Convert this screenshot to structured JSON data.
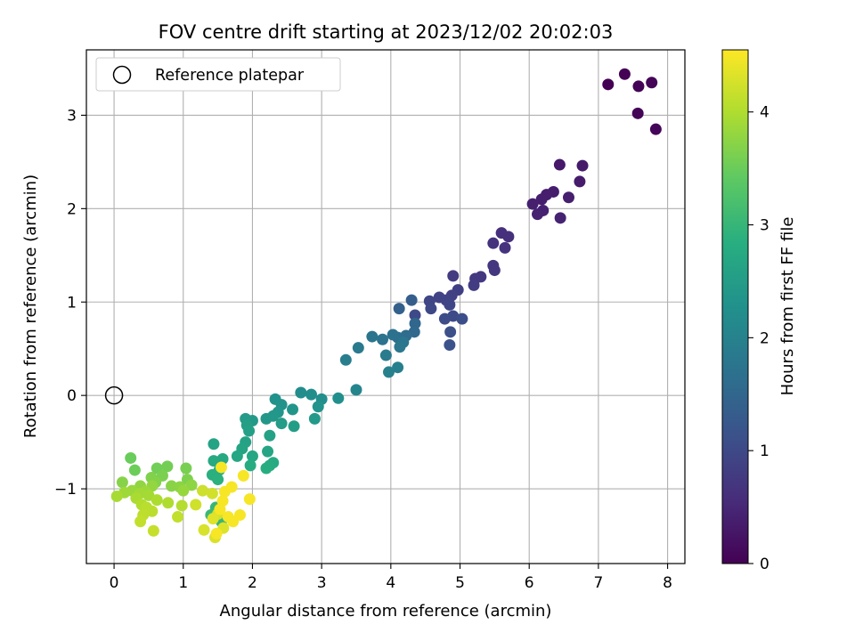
{
  "chart_data": {
    "type": "scatter",
    "title": "FOV centre drift starting at 2023/12/02 20:02:03",
    "xlabel": "Angular distance from reference (arcmin)",
    "ylabel": "Rotation from reference (arcmin)",
    "xlim": [
      -0.4,
      8.25
    ],
    "ylim": [
      -1.8,
      3.7
    ],
    "xticks": [
      0,
      1,
      2,
      3,
      4,
      5,
      6,
      7,
      8
    ],
    "yticks": [
      -1,
      0,
      1,
      2,
      3
    ],
    "grid": true,
    "legend": {
      "location": "upper left",
      "entries": [
        "Reference platepar"
      ]
    },
    "reference_point": {
      "x": 0,
      "y": 0,
      "marker": "open-circle",
      "label": "Reference platepar"
    },
    "colorbar": {
      "label": "Hours from first FF file",
      "range": [
        0,
        4.55
      ],
      "ticks": [
        0,
        1,
        2,
        3,
        4
      ],
      "colormap": "viridis"
    },
    "points": [
      {
        "x": 7.14,
        "y": 3.33,
        "t": 0.0
      },
      {
        "x": 7.38,
        "y": 3.44,
        "t": 0.02
      },
      {
        "x": 7.58,
        "y": 3.31,
        "t": 0.03
      },
      {
        "x": 7.77,
        "y": 3.35,
        "t": 0.04
      },
      {
        "x": 7.57,
        "y": 3.02,
        "t": 0.05
      },
      {
        "x": 7.83,
        "y": 2.85,
        "t": 0.06
      },
      {
        "x": 6.44,
        "y": 2.47,
        "t": 0.3
      },
      {
        "x": 6.77,
        "y": 2.46,
        "t": 0.32
      },
      {
        "x": 6.73,
        "y": 2.29,
        "t": 0.33
      },
      {
        "x": 6.35,
        "y": 2.18,
        "t": 0.35
      },
      {
        "x": 6.25,
        "y": 2.15,
        "t": 0.37
      },
      {
        "x": 6.18,
        "y": 2.1,
        "t": 0.38
      },
      {
        "x": 6.57,
        "y": 2.12,
        "t": 0.39
      },
      {
        "x": 6.05,
        "y": 2.05,
        "t": 0.4
      },
      {
        "x": 6.2,
        "y": 1.98,
        "t": 0.42
      },
      {
        "x": 6.12,
        "y": 1.94,
        "t": 0.43
      },
      {
        "x": 6.45,
        "y": 1.9,
        "t": 0.44
      },
      {
        "x": 5.6,
        "y": 1.74,
        "t": 0.6
      },
      {
        "x": 5.7,
        "y": 1.7,
        "t": 0.62
      },
      {
        "x": 5.48,
        "y": 1.63,
        "t": 0.64
      },
      {
        "x": 5.65,
        "y": 1.58,
        "t": 0.66
      },
      {
        "x": 5.48,
        "y": 1.39,
        "t": 0.7
      },
      {
        "x": 5.5,
        "y": 1.34,
        "t": 0.72
      },
      {
        "x": 5.3,
        "y": 1.27,
        "t": 0.74
      },
      {
        "x": 5.22,
        "y": 1.25,
        "t": 0.76
      },
      {
        "x": 4.9,
        "y": 1.28,
        "t": 0.78
      },
      {
        "x": 5.2,
        "y": 1.18,
        "t": 0.8
      },
      {
        "x": 4.97,
        "y": 1.13,
        "t": 0.84
      },
      {
        "x": 4.88,
        "y": 1.07,
        "t": 0.87
      },
      {
        "x": 4.7,
        "y": 1.05,
        "t": 0.9
      },
      {
        "x": 4.8,
        "y": 1.02,
        "t": 0.92
      },
      {
        "x": 4.56,
        "y": 1.01,
        "t": 0.94
      },
      {
        "x": 4.85,
        "y": 0.97,
        "t": 0.96
      },
      {
        "x": 4.58,
        "y": 0.93,
        "t": 0.98
      },
      {
        "x": 4.35,
        "y": 0.86,
        "t": 1.0
      },
      {
        "x": 4.9,
        "y": 0.85,
        "t": 1.02
      },
      {
        "x": 4.78,
        "y": 0.82,
        "t": 1.05
      },
      {
        "x": 5.03,
        "y": 0.82,
        "t": 1.07
      },
      {
        "x": 4.86,
        "y": 0.68,
        "t": 1.1
      },
      {
        "x": 4.85,
        "y": 0.54,
        "t": 1.13
      },
      {
        "x": 4.3,
        "y": 1.02,
        "t": 1.35
      },
      {
        "x": 4.12,
        "y": 0.93,
        "t": 1.4
      },
      {
        "x": 4.35,
        "y": 0.77,
        "t": 1.5
      },
      {
        "x": 4.34,
        "y": 0.68,
        "t": 1.55
      },
      {
        "x": 4.22,
        "y": 0.64,
        "t": 1.6
      },
      {
        "x": 4.1,
        "y": 0.62,
        "t": 1.65
      },
      {
        "x": 4.03,
        "y": 0.65,
        "t": 1.7
      },
      {
        "x": 3.88,
        "y": 0.6,
        "t": 1.72
      },
      {
        "x": 3.73,
        "y": 0.63,
        "t": 1.75
      },
      {
        "x": 4.18,
        "y": 0.57,
        "t": 1.78
      },
      {
        "x": 4.13,
        "y": 0.52,
        "t": 1.8
      },
      {
        "x": 3.53,
        "y": 0.51,
        "t": 1.85
      },
      {
        "x": 3.93,
        "y": 0.43,
        "t": 1.88
      },
      {
        "x": 3.35,
        "y": 0.38,
        "t": 1.92
      },
      {
        "x": 4.1,
        "y": 0.3,
        "t": 1.95
      },
      {
        "x": 3.97,
        "y": 0.25,
        "t": 1.98
      },
      {
        "x": 3.5,
        "y": 0.06,
        "t": 2.05
      },
      {
        "x": 2.7,
        "y": 0.03,
        "t": 2.2
      },
      {
        "x": 2.85,
        "y": 0.01,
        "t": 2.22
      },
      {
        "x": 3.0,
        "y": -0.04,
        "t": 2.24
      },
      {
        "x": 3.24,
        "y": -0.03,
        "t": 2.26
      },
      {
        "x": 2.33,
        "y": -0.04,
        "t": 2.3
      },
      {
        "x": 2.42,
        "y": -0.1,
        "t": 2.32
      },
      {
        "x": 2.95,
        "y": -0.12,
        "t": 2.34
      },
      {
        "x": 2.58,
        "y": -0.15,
        "t": 2.36
      },
      {
        "x": 2.37,
        "y": -0.18,
        "t": 2.38
      },
      {
        "x": 2.3,
        "y": -0.22,
        "t": 2.4
      },
      {
        "x": 2.2,
        "y": -0.25,
        "t": 2.42
      },
      {
        "x": 2.9,
        "y": -0.25,
        "t": 2.44
      },
      {
        "x": 2.0,
        "y": -0.27,
        "t": 2.46
      },
      {
        "x": 1.9,
        "y": -0.25,
        "t": 2.48
      },
      {
        "x": 2.42,
        "y": -0.3,
        "t": 2.5
      },
      {
        "x": 2.6,
        "y": -0.33,
        "t": 2.52
      },
      {
        "x": 1.92,
        "y": -0.32,
        "t": 2.54
      },
      {
        "x": 1.95,
        "y": -0.38,
        "t": 2.56
      },
      {
        "x": 2.25,
        "y": -0.43,
        "t": 2.58
      },
      {
        "x": 1.9,
        "y": -0.5,
        "t": 2.6
      },
      {
        "x": 1.44,
        "y": -0.52,
        "t": 2.62
      },
      {
        "x": 1.85,
        "y": -0.57,
        "t": 2.64
      },
      {
        "x": 2.22,
        "y": -0.6,
        "t": 2.66
      },
      {
        "x": 1.78,
        "y": -0.65,
        "t": 2.68
      },
      {
        "x": 2.0,
        "y": -0.65,
        "t": 2.7
      },
      {
        "x": 1.57,
        "y": -0.68,
        "t": 2.72
      },
      {
        "x": 1.44,
        "y": -0.7,
        "t": 2.74
      },
      {
        "x": 2.3,
        "y": -0.72,
        "t": 2.76
      },
      {
        "x": 2.25,
        "y": -0.75,
        "t": 2.78
      },
      {
        "x": 1.97,
        "y": -0.75,
        "t": 2.8
      },
      {
        "x": 2.2,
        "y": -0.78,
        "t": 2.82
      },
      {
        "x": 1.52,
        "y": -0.8,
        "t": 2.84
      },
      {
        "x": 1.42,
        "y": -0.85,
        "t": 2.86
      },
      {
        "x": 1.5,
        "y": -0.9,
        "t": 2.88
      },
      {
        "x": 0.24,
        "y": -0.67,
        "t": 3.5
      },
      {
        "x": 0.3,
        "y": -0.8,
        "t": 3.52
      },
      {
        "x": 0.62,
        "y": -0.78,
        "t": 3.55
      },
      {
        "x": 0.77,
        "y": -0.76,
        "t": 3.57
      },
      {
        "x": 1.04,
        "y": -0.78,
        "t": 3.6
      },
      {
        "x": 0.7,
        "y": -0.86,
        "t": 3.62
      },
      {
        "x": 1.06,
        "y": -0.9,
        "t": 3.64
      },
      {
        "x": 0.54,
        "y": -0.88,
        "t": 3.66
      },
      {
        "x": 0.6,
        "y": -0.93,
        "t": 3.68
      },
      {
        "x": 0.12,
        "y": -0.93,
        "t": 3.7
      },
      {
        "x": 0.83,
        "y": -0.97,
        "t": 3.72
      },
      {
        "x": 0.95,
        "y": -0.98,
        "t": 3.74
      },
      {
        "x": 1.12,
        "y": -0.96,
        "t": 3.76
      },
      {
        "x": 0.38,
        "y": -0.97,
        "t": 3.78
      },
      {
        "x": 0.55,
        "y": -0.97,
        "t": 3.8
      },
      {
        "x": 1.0,
        "y": -1.02,
        "t": 3.82
      },
      {
        "x": 0.26,
        "y": -1.02,
        "t": 3.84
      },
      {
        "x": 0.45,
        "y": -1.03,
        "t": 3.86
      },
      {
        "x": 0.15,
        "y": -1.04,
        "t": 3.88
      },
      {
        "x": 0.37,
        "y": -1.05,
        "t": 3.9
      },
      {
        "x": 0.5,
        "y": -1.07,
        "t": 3.92
      },
      {
        "x": 0.04,
        "y": -1.08,
        "t": 3.94
      },
      {
        "x": 0.32,
        "y": -1.1,
        "t": 3.96
      },
      {
        "x": 0.62,
        "y": -1.12,
        "t": 3.98
      },
      {
        "x": 0.78,
        "y": -1.15,
        "t": 4.0
      },
      {
        "x": 0.4,
        "y": -1.17,
        "t": 4.02
      },
      {
        "x": 0.98,
        "y": -1.18,
        "t": 4.04
      },
      {
        "x": 0.47,
        "y": -1.2,
        "t": 4.06
      },
      {
        "x": 0.55,
        "y": -1.24,
        "t": 4.08
      },
      {
        "x": 0.42,
        "y": -1.28,
        "t": 4.1
      },
      {
        "x": 0.92,
        "y": -1.3,
        "t": 4.12
      },
      {
        "x": 0.38,
        "y": -1.35,
        "t": 4.14
      },
      {
        "x": 0.57,
        "y": -1.45,
        "t": 4.16
      },
      {
        "x": 1.47,
        "y": -1.2,
        "t": 3.0
      },
      {
        "x": 1.55,
        "y": -1.35,
        "t": 3.02
      },
      {
        "x": 1.4,
        "y": -1.28,
        "t": 3.04
      },
      {
        "x": 1.28,
        "y": -1.02,
        "t": 4.2
      },
      {
        "x": 1.18,
        "y": -1.17,
        "t": 4.22
      },
      {
        "x": 1.42,
        "y": -1.05,
        "t": 4.24
      },
      {
        "x": 1.5,
        "y": -1.27,
        "t": 4.26
      },
      {
        "x": 1.3,
        "y": -1.44,
        "t": 4.28
      },
      {
        "x": 1.46,
        "y": -1.52,
        "t": 4.3
      },
      {
        "x": 1.58,
        "y": -1.42,
        "t": 4.32
      },
      {
        "x": 1.43,
        "y": -1.32,
        "t": 4.34
      },
      {
        "x": 1.55,
        "y": -0.77,
        "t": 4.5
      },
      {
        "x": 1.87,
        "y": -0.86,
        "t": 4.5
      },
      {
        "x": 1.7,
        "y": -0.98,
        "t": 4.5
      },
      {
        "x": 1.6,
        "y": -1.03,
        "t": 4.5
      },
      {
        "x": 1.57,
        "y": -1.13,
        "t": 4.5
      },
      {
        "x": 1.96,
        "y": -1.11,
        "t": 4.5
      },
      {
        "x": 1.53,
        "y": -1.22,
        "t": 4.5
      },
      {
        "x": 1.65,
        "y": -1.3,
        "t": 4.5
      },
      {
        "x": 1.82,
        "y": -1.28,
        "t": 4.5
      },
      {
        "x": 1.72,
        "y": -1.35,
        "t": 4.5
      },
      {
        "x": 1.48,
        "y": -1.48,
        "t": 4.5
      }
    ]
  }
}
